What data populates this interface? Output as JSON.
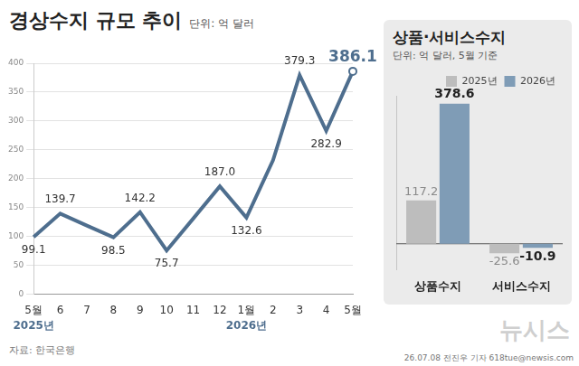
{
  "chart_data": [
    {
      "type": "line",
      "title": "경상수지 규모 추이",
      "subtitle": "단위: 억 달러",
      "categories": [
        "5월",
        "6",
        "7",
        "8",
        "9",
        "10",
        "11",
        "12",
        "1월",
        "2",
        "3",
        "4",
        "5월"
      ],
      "x_groups": [
        {
          "label": "2025년",
          "start": 0
        },
        {
          "label": "2026년",
          "start": 8
        }
      ],
      "values": [
        99.1,
        139.7,
        119,
        98.5,
        142.2,
        75.7,
        131,
        187.0,
        132.6,
        232,
        379.3,
        282.9,
        386.1
      ],
      "value_labels": [
        "99.1",
        "139.7",
        null,
        "98.5",
        "142.2",
        "75.7",
        null,
        "187.0",
        "132.6",
        null,
        "379.3",
        "282.9",
        "386.1"
      ],
      "color": "#4e6e8e",
      "marker": "end",
      "data_labels": true,
      "ylim": [
        0,
        400
      ],
      "yticks": [
        0,
        50,
        100,
        150,
        200,
        250,
        300,
        350,
        400
      ],
      "grid": true
    },
    {
      "type": "bar",
      "title": "상품·서비스수지",
      "subtitle": "단위: 억 달러, 5월 기준",
      "categories": [
        "상품수지",
        "서비스수지"
      ],
      "series": [
        {
          "name": "2025년",
          "color": "#bdbdbd",
          "values": [
            117.2,
            -25.6
          ]
        },
        {
          "name": "2026년",
          "color": "#7f9cb6",
          "values": [
            378.6,
            -10.9
          ]
        }
      ],
      "legend": "top-right",
      "data_labels": true,
      "tick_labels": "x",
      "ylim": [
        -70,
        400
      ]
    }
  ],
  "footer": {
    "source": "자료: 한국은행",
    "logo": "뉴시스",
    "credit": "26.07.08 전진우 기자 618tue@newsis.com"
  }
}
